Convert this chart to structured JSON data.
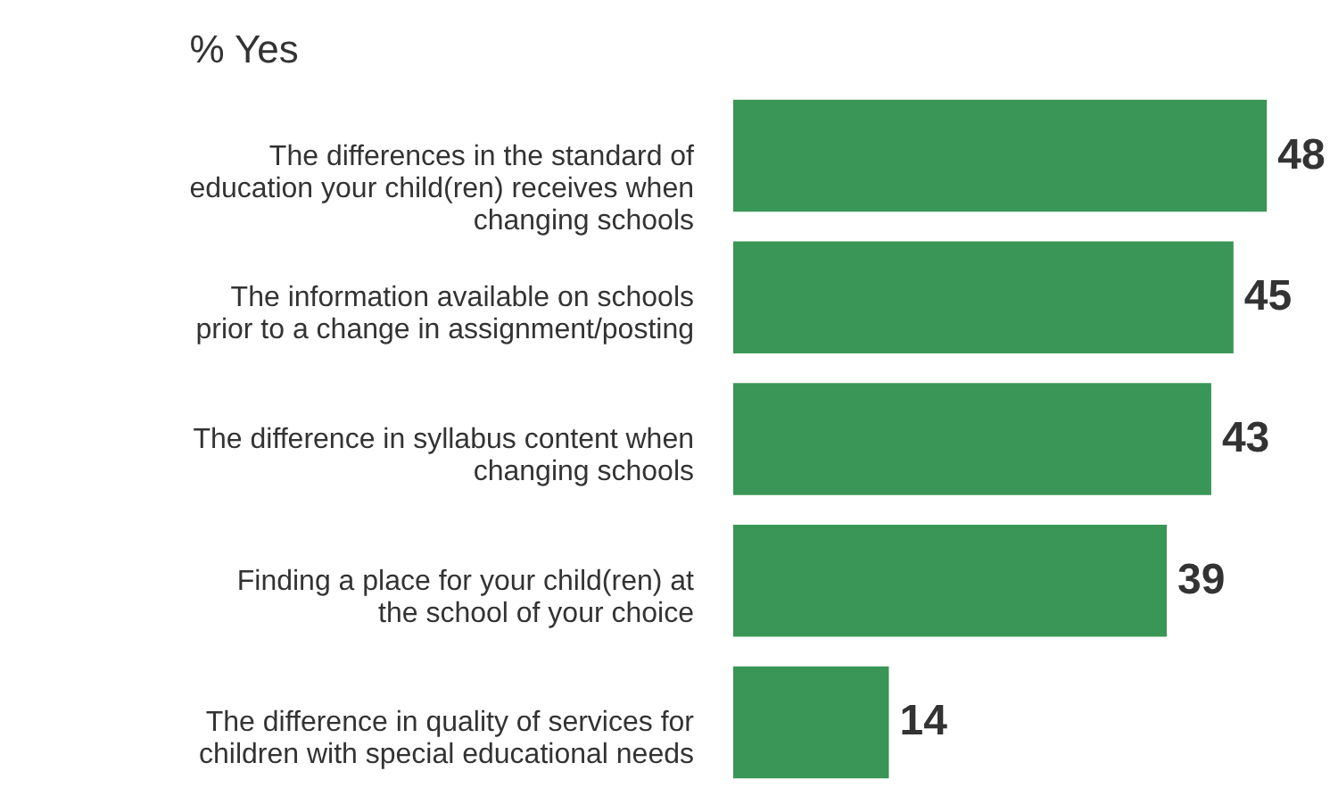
{
  "chart_data": {
    "type": "bar",
    "orientation": "horizontal",
    "title": "% Yes",
    "categories": [
      "The differences in the standard of education your child(ren) receives when changing schools",
      "The information available on schools prior to a change in assignment/posting",
      "The difference in syllabus content when changing schools",
      "Finding a place for your child(ren) at the school of your choice",
      "The difference in quality of services for children with special educational needs"
    ],
    "values": [
      48,
      45,
      43,
      39,
      14
    ],
    "color": "#3a9656",
    "data_labels": true
  }
}
